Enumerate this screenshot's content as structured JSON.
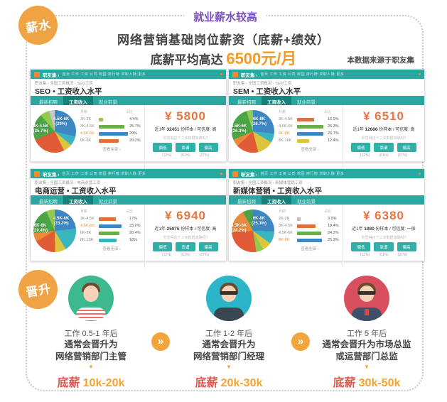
{
  "header": {
    "badge": "薪水",
    "tagline": "就业薪水较高",
    "title": "网络营销基础岗位薪资（底薪+绩效）",
    "subtitle_prefix": "底薪平均高达 ",
    "subtitle_value": "6500元/月",
    "source": "本数据来源于职友集"
  },
  "colors": {
    "accent_orange": "#f0a344",
    "purple": "#7a4fc0",
    "teal": "#2aa7a1",
    "salary_orange": "#e8743f",
    "headline_orange": "#f59b22",
    "promo_red": "#e2574d",
    "promo_range_orange": "#f5a329"
  },
  "site": {
    "logo": "职友集 ›",
    "nav": [
      "首页",
      "工作",
      "工资",
      "公司",
      "校园",
      "排行榜",
      "求职人脉",
      "更多"
    ],
    "tabs": [
      "最新招聘",
      "工资收入",
      "就业前景"
    ],
    "col_salary": "月薪",
    "col_ratio": "占比",
    "view_all": "查看全部 ›",
    "vote_prompt": "你觉得这个工资数据准确吗?",
    "vote_buttons": [
      "偏低",
      "靠谱",
      "偏高"
    ],
    "vote_captions": [
      "(12%)",
      "(61%)",
      "(27%)"
    ]
  },
  "cards": [
    {
      "breadcrumb": "职友集 › 全国工资概况 › SEO工资",
      "title": "SEO • 工资收入水平",
      "salary": "¥ 5800",
      "sample_prefix": "近1年",
      "sample_count": "32451",
      "sample_suffix": "份样本 / 可信度: 高",
      "pie": {
        "label_main_1": "4.5K-6K",
        "label_main_2": "(29%)",
        "label_side_1": "3K-4.5K",
        "label_side_2": "(25.7%)",
        "slices": [
          [
            "#3d87c2",
            104
          ],
          [
            "#3ab5c0",
            26
          ],
          [
            "#ddc43e",
            24
          ],
          [
            "#e05b36",
            92
          ],
          [
            "#4ba446",
            73
          ],
          [
            "#93c94e",
            26
          ],
          [
            "#c7c7c7",
            15
          ]
        ]
      },
      "rows": [
        {
          "label": "2K-3K",
          "pct": "4.4%",
          "value": 4.4,
          "color": "#93c94e",
          "hot": false
        },
        {
          "label": "3K-4.5K",
          "pct": "25.7%",
          "value": 25.7,
          "color": "#6aaf45",
          "hot": false
        },
        {
          "label": "4.5K-6K",
          "pct": "29%",
          "value": 29,
          "color": "#3d87c2",
          "hot": true
        },
        {
          "label": "6K-8K",
          "pct": "20.2%",
          "value": 20.2,
          "color": "#e0703a",
          "hot": false
        }
      ]
    },
    {
      "breadcrumb": "职友集 › 全国工资概况 › SEM工资",
      "title": "SEM • 工资收入水平",
      "salary": "¥ 6510",
      "sample_prefix": "近1年",
      "sample_count": "12686",
      "sample_suffix": "份样本 / 可信度: 高",
      "pie": {
        "label_main_1": "6K-8K",
        "label_main_2": "(26.7%)",
        "label_side_1": "4.5K-6K",
        "label_side_2": "(26.3%)",
        "slices": [
          [
            "#3d87c2",
            96
          ],
          [
            "#3ab5c0",
            25
          ],
          [
            "#ddc43e",
            45
          ],
          [
            "#e05b36",
            61
          ],
          [
            "#e98a3c",
            20
          ],
          [
            "#4ba446",
            95
          ],
          [
            "#93c94e",
            18
          ]
        ]
      },
      "rows": [
        {
          "label": "3K-4.5K",
          "pct": "16.9%",
          "value": 16.9,
          "color": "#e0703a",
          "hot": false
        },
        {
          "label": "4.5K-6K",
          "pct": "26.3%",
          "value": 26.3,
          "color": "#6aaf45",
          "hot": false
        },
        {
          "label": "6K-8K",
          "pct": "26.7%",
          "value": 26.7,
          "color": "#3d87c2",
          "hot": true
        },
        {
          "label": "8K-10K",
          "pct": "12.4%",
          "value": 12.4,
          "color": "#ddc43e",
          "hot": false
        }
      ]
    },
    {
      "breadcrumb": "职友集 › 全国工资概况 › 电商运营工资",
      "title": "电商运营 • 工资收入水平",
      "salary": "¥ 6940",
      "sample_prefix": "近1年",
      "sample_count": "25075",
      "sample_suffix": "份样本 / 可信度: 高",
      "pie": {
        "label_main_1": "4.5K-6K",
        "label_main_2": "(23.2%)",
        "label_side_1": "6K-8K",
        "label_side_2": "(20.4%)",
        "slices": [
          [
            "#3d87c2",
            84
          ],
          [
            "#3ab5c0",
            65
          ],
          [
            "#ddc43e",
            30
          ],
          [
            "#e05b36",
            61
          ],
          [
            "#e98a3c",
            24
          ],
          [
            "#4ba446",
            73
          ],
          [
            "#93c94e",
            23
          ]
        ]
      },
      "rows": [
        {
          "label": "3K-4.5K",
          "pct": "17%",
          "value": 17,
          "color": "#e0703a",
          "hot": false
        },
        {
          "label": "4.5K-6K",
          "pct": "23.2%",
          "value": 23.2,
          "color": "#3d87c2",
          "hot": true
        },
        {
          "label": "6K-8K",
          "pct": "20.4%",
          "value": 20.4,
          "color": "#6aaf45",
          "hot": false
        },
        {
          "label": "8K-10K",
          "pct": "18%",
          "value": 18,
          "color": "#3ab5c0",
          "hot": false
        }
      ]
    },
    {
      "breadcrumb": "职友集 › 全国工资概况 › 新媒体营销工资",
      "title": "新媒体营销 • 工资收入水平",
      "salary": "¥ 6380",
      "sample_prefix": "近1年",
      "sample_count": "1980",
      "sample_suffix": "份样本 / 可信度: 一般",
      "pie": {
        "label_main_1": "6K-8K",
        "label_main_2": "(25.3%)",
        "label_side_1": "4.5K-6K",
        "label_side_2": "(24.2%)",
        "slices": [
          [
            "#3d87c2",
            91
          ],
          [
            "#3ab5c0",
            35
          ],
          [
            "#ddc43e",
            25
          ],
          [
            "#93c94e",
            20
          ],
          [
            "#e05b36",
            95
          ],
          [
            "#e98a3c",
            66
          ],
          [
            "#4ba446",
            28
          ]
        ]
      },
      "rows": [
        {
          "label": "2K-3K",
          "pct": "3.9%",
          "value": 3.9,
          "color": "#bfbfbf",
          "hot": false
        },
        {
          "label": "3K-4.5K",
          "pct": "18.4%",
          "value": 18.4,
          "color": "#e0703a",
          "hot": false
        },
        {
          "label": "4.5K-6K",
          "pct": "24.2%",
          "value": 24.2,
          "color": "#6aaf45",
          "hot": false
        },
        {
          "label": "6K-8K",
          "pct": "25.3%",
          "value": 25.3,
          "color": "#3d87c2",
          "hot": true
        }
      ]
    }
  ],
  "promotion": {
    "badge": "晋升",
    "arrow_glyph": "»",
    "down_glyph": "▼",
    "steps": [
      {
        "period": "工作 0.5-1 年后",
        "line1": "通常会晋升为",
        "line2": "网络营销部门主管",
        "salary_label": "底薪",
        "salary_range": "10k-20k",
        "avatar_bg": "#3cb98e"
      },
      {
        "period": "工作 1-2 年后",
        "line1": "通常会晋升为",
        "line2": "网络营销部门经理",
        "salary_label": "底薪",
        "salary_range": "20k-30k",
        "avatar_bg": "#2cb5c8"
      },
      {
        "period": "工作 5 年后",
        "line1": "通常会晋升为市场总监",
        "line2": "或运营部门总监",
        "salary_label": "底薪",
        "salary_range": "30k-50k",
        "avatar_bg": "#d8505f"
      }
    ]
  },
  "chart_data": [
    {
      "type": "pie",
      "title": "SEO • 工资收入水平",
      "average_salary": "¥5800/月",
      "sample_size": 32451,
      "confidence": "高",
      "categories": [
        "2K-3K",
        "3K-4.5K",
        "4.5K-6K",
        "6K-8K"
      ],
      "values": [
        4.4,
        25.7,
        29,
        20.2
      ],
      "unit": "%"
    },
    {
      "type": "pie",
      "title": "SEM • 工资收入水平",
      "average_salary": "¥6510/月",
      "sample_size": 12686,
      "confidence": "高",
      "categories": [
        "3K-4.5K",
        "4.5K-6K",
        "6K-8K",
        "8K-10K"
      ],
      "values": [
        16.9,
        26.3,
        26.7,
        12.4
      ],
      "unit": "%"
    },
    {
      "type": "pie",
      "title": "电商运营 • 工资收入水平",
      "average_salary": "¥6940/月",
      "sample_size": 25075,
      "confidence": "高",
      "categories": [
        "3K-4.5K",
        "4.5K-6K",
        "6K-8K",
        "8K-10K"
      ],
      "values": [
        17,
        23.2,
        20.4,
        18
      ],
      "unit": "%"
    },
    {
      "type": "pie",
      "title": "新媒体营销 • 工资收入水平",
      "average_salary": "¥6380/月",
      "sample_size": 1980,
      "confidence": "一般",
      "categories": [
        "2K-3K",
        "3K-4.5K",
        "4.5K-6K",
        "6K-8K"
      ],
      "values": [
        3.9,
        18.4,
        24.2,
        25.3
      ],
      "unit": "%"
    }
  ]
}
